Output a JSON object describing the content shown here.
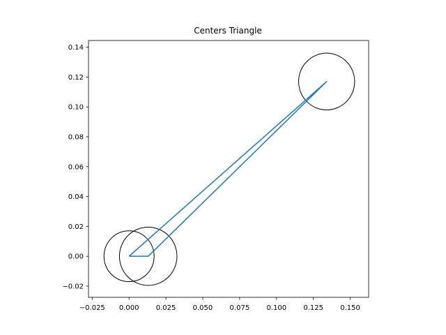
{
  "chart_data": {
    "type": "line",
    "title": "Centers Triangle",
    "xlabel": "",
    "ylabel": "",
    "xlim": [
      -0.0275,
      0.1625
    ],
    "ylim": [
      -0.0275,
      0.1445
    ],
    "xticks": [
      -0.025,
      0.0,
      0.025,
      0.05,
      0.075,
      0.1,
      0.125,
      0.15
    ],
    "xtick_labels": [
      "−0.025",
      "0.000",
      "0.025",
      "0.050",
      "0.075",
      "0.100",
      "0.125",
      "0.150"
    ],
    "yticks": [
      -0.02,
      0.0,
      0.02,
      0.04,
      0.06,
      0.08,
      0.1,
      0.12,
      0.14
    ],
    "ytick_labels": [
      "−0.02",
      "0.00",
      "0.02",
      "0.04",
      "0.06",
      "0.08",
      "0.10",
      "0.12",
      "0.14"
    ],
    "grid": false,
    "series": [
      {
        "color": "#1f77b4",
        "x": [
          0.0,
          0.013,
          0.134,
          0.0
        ],
        "y": [
          0.0,
          0.0,
          0.117,
          0.0
        ]
      }
    ],
    "circles": [
      {
        "cx": 0.0,
        "cy": 0.0,
        "r": 0.017,
        "color": "#000000"
      },
      {
        "cx": 0.013,
        "cy": 0.0,
        "r": 0.0195,
        "color": "#000000"
      },
      {
        "cx": 0.134,
        "cy": 0.117,
        "r": 0.019,
        "color": "#000000"
      }
    ]
  }
}
